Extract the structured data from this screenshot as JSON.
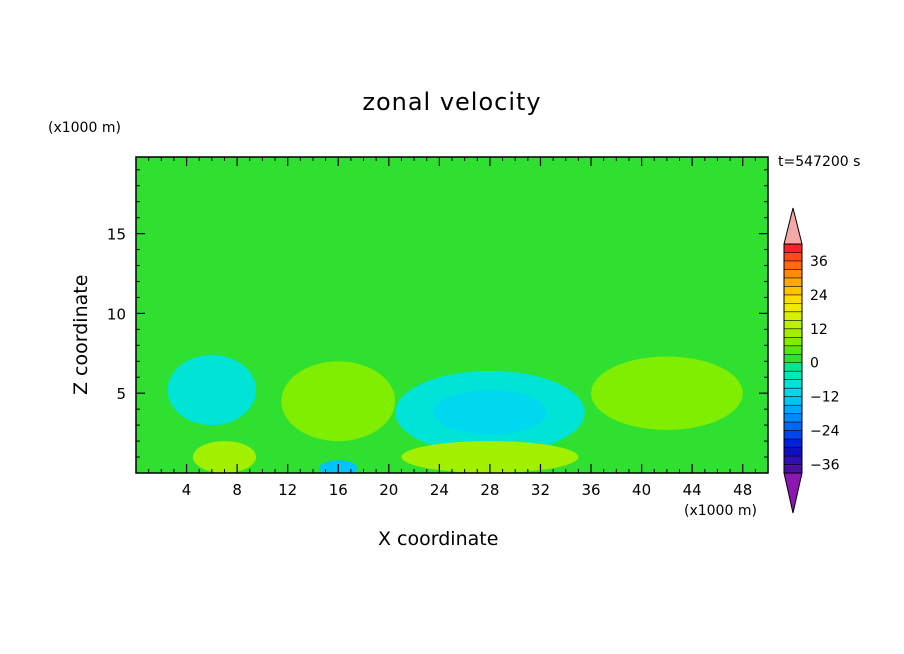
{
  "chart_data": {
    "type": "heatmap",
    "title": "zonal velocity",
    "time_label": "t=547200 s",
    "xlabel": "X coordinate",
    "ylabel": "Z coordinate",
    "x_unit": "(x1000 m)",
    "y_unit": "(x1000 m)",
    "xlim": [
      0,
      50
    ],
    "ylim": [
      0,
      19.8
    ],
    "x_ticks": [
      4,
      8,
      12,
      16,
      20,
      24,
      28,
      32,
      36,
      40,
      44,
      48
    ],
    "y_ticks": [
      5,
      10,
      15
    ],
    "colorbar": {
      "labels": [
        36,
        24,
        12,
        0,
        -12,
        -24,
        -36
      ],
      "levels": [
        42,
        39,
        36,
        33,
        30,
        27,
        24,
        21,
        18,
        15,
        12,
        9,
        6,
        3,
        0,
        -3,
        -6,
        -9,
        -12,
        -15,
        -18,
        -21,
        -24,
        -27,
        -30,
        -33,
        -36,
        -39
      ],
      "colors": [
        "#ff2020",
        "#ff4a18",
        "#ff6a10",
        "#ff8c08",
        "#ffaa00",
        "#ffc400",
        "#ffdd00",
        "#f0ea00",
        "#d8f000",
        "#bcf200",
        "#a0f000",
        "#80ee00",
        "#55e800",
        "#2fe030",
        "#00e890",
        "#00eab8",
        "#00e4d8",
        "#00d8f0",
        "#00c4ff",
        "#00a8ff",
        "#0088ff",
        "#0066ff",
        "#0044f0",
        "#0022dd",
        "#1010c0",
        "#3010b0",
        "#4a10a0"
      ],
      "over_color": "#f4a8a8",
      "under_color": "#8a18b0"
    },
    "field": {
      "background": 0,
      "features": [
        {
          "x": [
            10,
            18,
            20,
            40,
            50
          ],
          "z": 19.8,
          "value": 0
        },
        {
          "x": [
            0,
            10,
            28,
            38,
            50
          ],
          "z": 17.0,
          "value": 3
        },
        {
          "x": [
            0,
            8,
            18,
            30,
            42,
            50
          ],
          "z": 13.2,
          "value": 3
        },
        {
          "x": [
            0,
            12,
            24,
            36,
            50
          ],
          "z": 10.0,
          "value": 3
        },
        {
          "x": [
            0,
            6,
            18,
            30,
            44,
            50
          ],
          "z": 7.5,
          "value": 3
        },
        {
          "cx": 6.0,
          "cz": 5.2,
          "rx": 3.5,
          "rz": 2.2,
          "value": -6
        },
        {
          "cx": 28.0,
          "cz": 3.8,
          "rx": 7.5,
          "rz": 2.6,
          "value": -6
        },
        {
          "cx": 28.0,
          "cz": 3.8,
          "rx": 4.5,
          "rz": 1.4,
          "value": -9
        },
        {
          "cx": 16.0,
          "cz": 4.5,
          "rx": 4.5,
          "rz": 2.5,
          "value": 9
        },
        {
          "cx": 42.0,
          "cz": 5.0,
          "rx": 6.0,
          "rz": 2.3,
          "value": 9
        },
        {
          "cx": 28.0,
          "cz": 1.0,
          "rx": 7.0,
          "rz": 1.0,
          "value": 12
        },
        {
          "cx": 7.0,
          "cz": 1.0,
          "rx": 2.5,
          "rz": 1.0,
          "value": 12
        },
        {
          "cx": 16.0,
          "cz": 0.3,
          "rx": 1.5,
          "rz": 0.5,
          "value": -12
        }
      ]
    }
  }
}
